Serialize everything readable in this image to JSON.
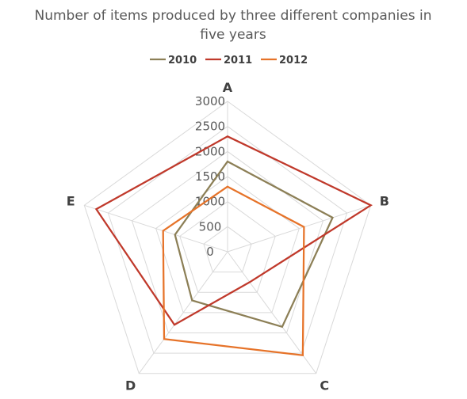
{
  "chart_data": {
    "type": "radar",
    "title_line1": "Number of items produced by three different companies in",
    "title_line2": "five years",
    "categories": [
      "A",
      "B",
      "C",
      "D",
      "E"
    ],
    "series": [
      {
        "name": "2010",
        "values": [
          1800,
          2200,
          1850,
          1200,
          1100
        ],
        "color": "#8c7f56"
      },
      {
        "name": "2011",
        "values": [
          2300,
          3000,
          750,
          1800,
          2750
        ],
        "color": "#c0392b"
      },
      {
        "name": "2012",
        "values": [
          1300,
          1600,
          2550,
          2150,
          1350
        ],
        "color": "#e67329"
      }
    ],
    "rlim": [
      0,
      3000
    ],
    "ticks": [
      "0",
      "500",
      "1000",
      "1500",
      "2000",
      "2500",
      "3000"
    ],
    "legend_position": "top",
    "grid": true
  }
}
